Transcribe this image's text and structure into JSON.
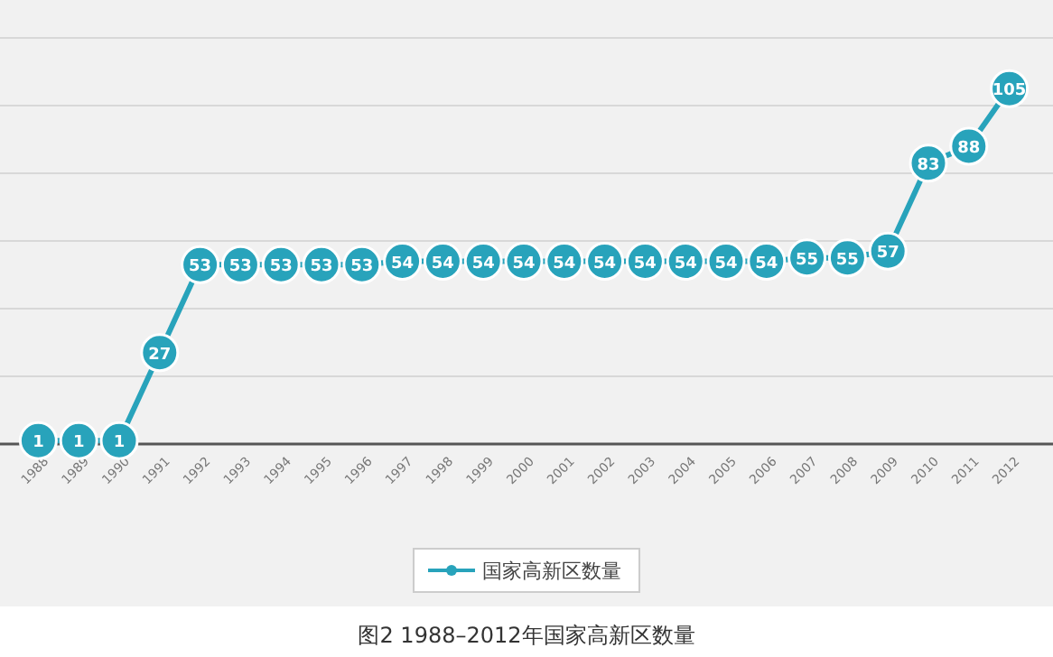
{
  "chart_data": {
    "type": "line",
    "title": "图2 1988–2012年国家高新区数量",
    "categories": [
      "1988",
      "1989",
      "1990",
      "1991",
      "1992",
      "1993",
      "1994",
      "1995",
      "1996",
      "1997",
      "1998",
      "1999",
      "2000",
      "2001",
      "2002",
      "2003",
      "2004",
      "2005",
      "2006",
      "2007",
      "2008",
      "2009",
      "2010",
      "2011",
      "2012"
    ],
    "series": [
      {
        "name": "国家高新区数量",
        "color": "#28a3bb",
        "values": [
          1,
          1,
          1,
          27,
          53,
          53,
          53,
          53,
          53,
          54,
          54,
          54,
          54,
          54,
          54,
          54,
          54,
          54,
          54,
          55,
          55,
          57,
          83,
          88,
          105
        ]
      }
    ],
    "ylim": [
      0,
      120
    ],
    "yticks": [
      {
        "value": 0,
        "label": null
      },
      {
        "value": 20,
        "label": null
      },
      {
        "value": 40,
        "label": null
      },
      {
        "value": 60,
        "label": null
      },
      {
        "value": 80,
        "label": null
      },
      {
        "value": 100,
        "label": null
      },
      {
        "value": 120,
        "label": null
      }
    ],
    "grid": "y",
    "legend": "bottom",
    "marker": "circle",
    "data_labels": true
  }
}
